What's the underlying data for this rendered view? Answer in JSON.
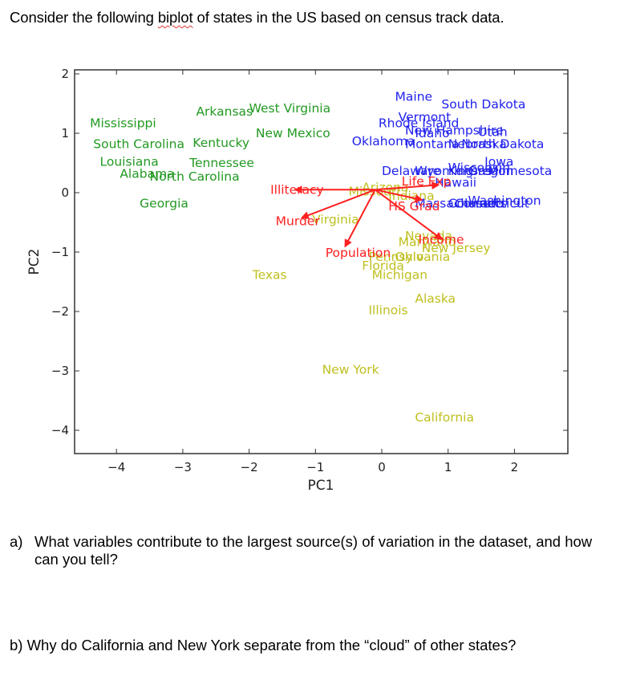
{
  "intro": {
    "before": "Consider the following ",
    "flagged_word": "biplot",
    "after": " of states in the US based on census track data."
  },
  "questions": {
    "a_num": "a)",
    "a_text": "What variables contribute to the largest source(s) of variation in the dataset, and how can you tell?",
    "b_text": "b) Why do California and New York separate from the “cloud” of other states?"
  },
  "colors": {
    "cluster_green": "#229922",
    "cluster_blue": "#2222ee",
    "cluster_olive": "#bfbf1f",
    "loading_red": "#ff2020",
    "axis": "#333333"
  },
  "chart_data": {
    "type": "scatter",
    "subtype": "biplot",
    "title": "",
    "xlabel": "PC1",
    "ylabel": "PC2",
    "xlim": [
      -4.6,
      2.8
    ],
    "ylim": [
      -4.4,
      2.05
    ],
    "xticks": [
      -4,
      -3,
      -2,
      -1,
      0,
      1,
      2
    ],
    "yticks": [
      2,
      1,
      0,
      -1,
      -2,
      -3,
      -4
    ],
    "grid": false,
    "legend": null,
    "series": [
      {
        "name": "cluster-green",
        "color": "#229922",
        "points": [
          {
            "label": "Mississippi",
            "x": -4.4,
            "y": 1.1
          },
          {
            "label": "Arkansas",
            "x": -2.8,
            "y": 1.3
          },
          {
            "label": "West Virginia",
            "x": -2.0,
            "y": 1.35
          },
          {
            "label": "New Mexico",
            "x": -1.9,
            "y": 0.93
          },
          {
            "label": "South Carolina",
            "x": -4.35,
            "y": 0.75
          },
          {
            "label": "Kentucky",
            "x": -2.85,
            "y": 0.77
          },
          {
            "label": "Louisiana",
            "x": -4.25,
            "y": 0.45
          },
          {
            "label": "Tennessee",
            "x": -2.9,
            "y": 0.43
          },
          {
            "label": "Alabama",
            "x": -3.95,
            "y": 0.25
          },
          {
            "label": "North Carolina",
            "x": -3.5,
            "y": 0.2
          },
          {
            "label": "Georgia",
            "x": -3.65,
            "y": -0.25
          }
        ]
      },
      {
        "name": "cluster-blue",
        "color": "#2222ee",
        "points": [
          {
            "label": "Maine",
            "x": 0.2,
            "y": 1.55
          },
          {
            "label": "South Dakota",
            "x": 0.9,
            "y": 1.42
          },
          {
            "label": "Vermont",
            "x": 0.25,
            "y": 1.2
          },
          {
            "label": "Rhode Island",
            "x": -0.05,
            "y": 1.1
          },
          {
            "label": "New Hampshire",
            "x": 0.35,
            "y": 0.98
          },
          {
            "label": "Idaho",
            "x": 0.5,
            "y": 0.93
          },
          {
            "label": "Utah",
            "x": 1.45,
            "y": 0.95
          },
          {
            "label": "Oklahoma",
            "x": -0.45,
            "y": 0.8
          },
          {
            "label": "Montana",
            "x": 0.35,
            "y": 0.75
          },
          {
            "label": "Nebraska",
            "x": 1.0,
            "y": 0.75
          },
          {
            "label": "North Dakota",
            "x": 1.2,
            "y": 0.75
          },
          {
            "label": "Iowa",
            "x": 1.55,
            "y": 0.45
          },
          {
            "label": "Wisconsin",
            "x": 1.0,
            "y": 0.35
          },
          {
            "label": "Delaware",
            "x": 0.0,
            "y": 0.3
          },
          {
            "label": "Wyoming",
            "x": 0.5,
            "y": 0.3
          },
          {
            "label": "Kansas",
            "x": 1.0,
            "y": 0.3
          },
          {
            "label": "Oregon",
            "x": 1.3,
            "y": 0.3
          },
          {
            "label": "Minnesota",
            "x": 1.6,
            "y": 0.3
          },
          {
            "label": "Hawaii",
            "x": 0.8,
            "y": 0.1
          },
          {
            "label": "Massachusetts",
            "x": 0.5,
            "y": -0.25
          },
          {
            "label": "Colorado",
            "x": 1.0,
            "y": -0.25
          },
          {
            "label": "Washington",
            "x": 1.3,
            "y": -0.2
          },
          {
            "label": "Connecticut",
            "x": 1.1,
            "y": -0.25
          }
        ]
      },
      {
        "name": "cluster-olive",
        "color": "#bfbf1f",
        "points": [
          {
            "label": "Arizona",
            "x": -0.3,
            "y": 0.02
          },
          {
            "label": "Missouri",
            "x": -0.5,
            "y": -0.05
          },
          {
            "label": "Indiana",
            "x": 0.1,
            "y": -0.12
          },
          {
            "label": "Virginia",
            "x": -1.05,
            "y": -0.52
          },
          {
            "label": "Nevada",
            "x": 0.35,
            "y": -0.8
          },
          {
            "label": "Maryland",
            "x": 0.25,
            "y": -0.9
          },
          {
            "label": "New Jersey",
            "x": 0.6,
            "y": -1.0
          },
          {
            "label": "Pennsylvania",
            "x": -0.2,
            "y": -1.15
          },
          {
            "label": "Ohio",
            "x": 0.2,
            "y": -1.15
          },
          {
            "label": "Florida",
            "x": -0.3,
            "y": -1.3
          },
          {
            "label": "Michigan",
            "x": -0.15,
            "y": -1.45
          },
          {
            "label": "Texas",
            "x": -1.95,
            "y": -1.45
          },
          {
            "label": "Alaska",
            "x": 0.5,
            "y": -1.85
          },
          {
            "label": "Illinois",
            "x": -0.2,
            "y": -2.05
          },
          {
            "label": "New York",
            "x": -0.9,
            "y": -3.05
          },
          {
            "label": "California",
            "x": 0.5,
            "y": -3.85
          }
        ]
      }
    ],
    "loadings": {
      "origin": {
        "x": -0.1,
        "y": 0.05
      },
      "color": "#ff2020",
      "arrows": [
        {
          "label": "Illiteracy",
          "x": -1.3,
          "y": 0.05
        },
        {
          "label": "Murder",
          "x": -1.2,
          "y": -0.42
        },
        {
          "label": "Population",
          "x": -0.55,
          "y": -0.9
        },
        {
          "label": "Income",
          "x": 0.9,
          "y": -0.78
        },
        {
          "label": "HS Grad",
          "x": 0.6,
          "y": -0.12
        },
        {
          "label": "Life Exp",
          "x": 0.85,
          "y": 0.13
        }
      ]
    }
  }
}
